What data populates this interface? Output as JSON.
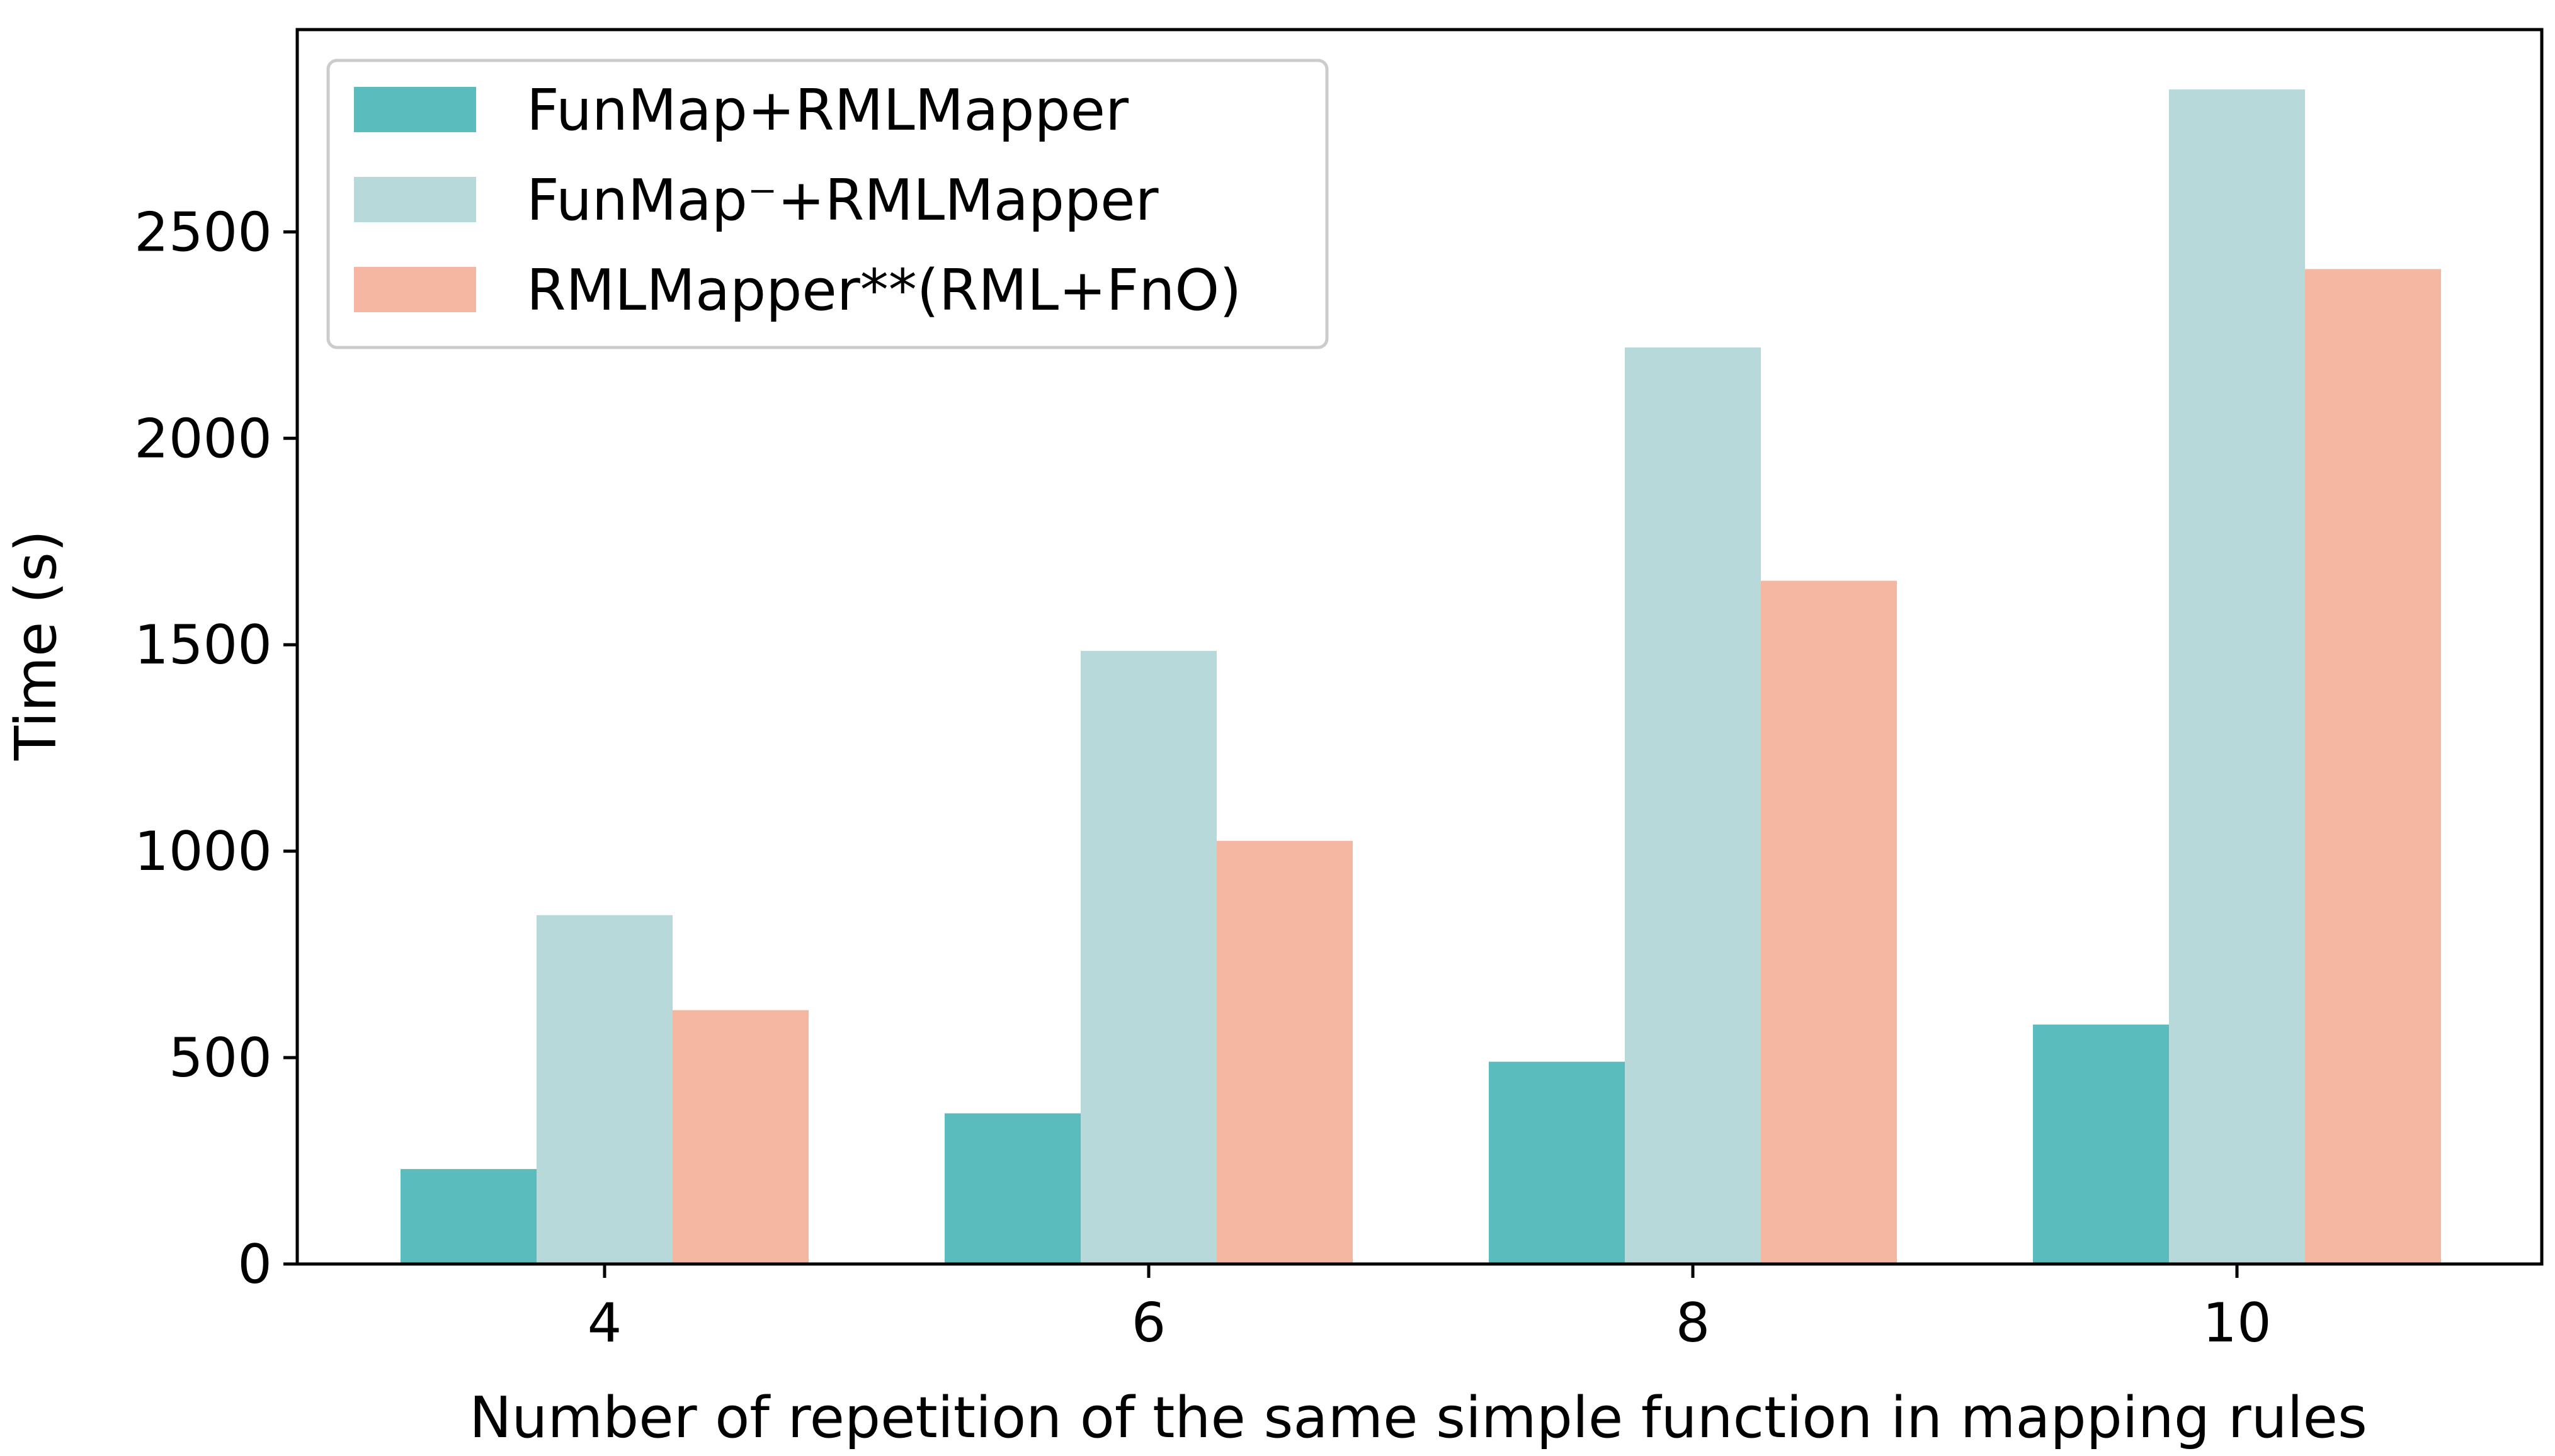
{
  "chart_data": {
    "type": "bar",
    "title": "",
    "xlabel": "Number of repetition of the same simple function in mapping rules",
    "ylabel": "Time (s)",
    "categories": [
      "4",
      "6",
      "8",
      "10"
    ],
    "series": [
      {
        "name": "FunMap+RMLMapper",
        "color": "#5bbcbd",
        "values": [
          230,
          365,
          490,
          580
        ]
      },
      {
        "name": "FunMap⁻+RMLMapper",
        "color": "#b8d9d9",
        "values": [
          845,
          1485,
          2220,
          2845
        ]
      },
      {
        "name": "RMLMapper**(RML+FnO)",
        "color": "#f5b7a1",
        "values": [
          615,
          1025,
          1655,
          2410
        ]
      }
    ],
    "ylim": [
      0,
      2990
    ],
    "yticks": [
      0,
      500,
      1000,
      1500,
      2000,
      2500
    ],
    "grid": false,
    "legend_position": "top-left"
  }
}
